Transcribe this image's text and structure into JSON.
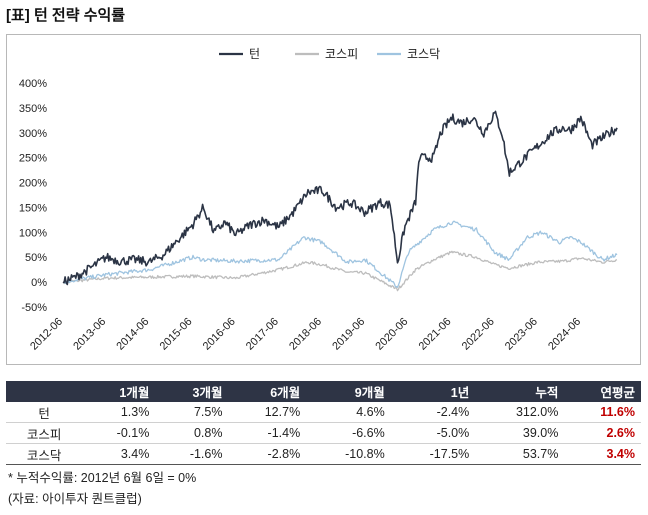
{
  "title": "[표] 턴 전략 수익률",
  "chart_data": {
    "type": "line",
    "title": "",
    "xlabel": "",
    "ylabel": "",
    "ylim": [
      -50,
      400
    ],
    "y_ticks": [
      "400%",
      "350%",
      "300%",
      "250%",
      "200%",
      "150%",
      "100%",
      "50%",
      "0%",
      "-50%"
    ],
    "x_ticks": [
      "2012-06",
      "2013-06",
      "2014-06",
      "2015-06",
      "2016-06",
      "2017-06",
      "2018-06",
      "2019-06",
      "2020-06",
      "2021-06",
      "2022-06",
      "2023-06",
      "2024-06"
    ],
    "legend_position": "top-center",
    "series": [
      {
        "name": "턴",
        "color": "#2b3445",
        "points": [
          [
            "2012-06",
            0
          ],
          [
            "2012-10",
            12
          ],
          [
            "2013-02",
            30
          ],
          [
            "2013-06",
            50
          ],
          [
            "2013-10",
            42
          ],
          [
            "2014-02",
            45
          ],
          [
            "2014-06",
            40
          ],
          [
            "2014-10",
            55
          ],
          [
            "2015-02",
            85
          ],
          [
            "2015-06",
            115
          ],
          [
            "2015-09",
            150
          ],
          [
            "2015-12",
            100
          ],
          [
            "2016-03",
            120
          ],
          [
            "2016-06",
            95
          ],
          [
            "2016-10",
            115
          ],
          [
            "2017-02",
            125
          ],
          [
            "2017-06",
            110
          ],
          [
            "2017-10",
            140
          ],
          [
            "2018-02",
            180
          ],
          [
            "2018-06",
            185
          ],
          [
            "2018-10",
            150
          ],
          [
            "2019-02",
            160
          ],
          [
            "2019-06",
            140
          ],
          [
            "2019-10",
            160
          ],
          [
            "2020-01",
            155
          ],
          [
            "2020-03",
            40
          ],
          [
            "2020-05",
            110
          ],
          [
            "2020-08",
            160
          ],
          [
            "2020-09",
            250
          ],
          [
            "2021-01",
            250
          ],
          [
            "2021-03",
            300
          ],
          [
            "2021-06",
            330
          ],
          [
            "2021-09",
            320
          ],
          [
            "2021-12",
            330
          ],
          [
            "2022-03",
            300
          ],
          [
            "2022-06",
            340
          ],
          [
            "2022-08",
            300
          ],
          [
            "2022-10",
            220
          ],
          [
            "2023-01",
            240
          ],
          [
            "2023-04",
            260
          ],
          [
            "2023-07",
            280
          ],
          [
            "2023-10",
            300
          ],
          [
            "2024-01",
            310
          ],
          [
            "2024-03",
            305
          ],
          [
            "2024-06",
            330
          ],
          [
            "2024-09",
            275
          ],
          [
            "2024-12",
            290
          ],
          [
            "2025-02",
            300
          ],
          [
            "2025-04",
            310
          ]
        ]
      },
      {
        "name": "코스피",
        "color": "#bdbdbd",
        "points": [
          [
            "2012-06",
            0
          ],
          [
            "2013-06",
            8
          ],
          [
            "2014-06",
            10
          ],
          [
            "2015-06",
            12
          ],
          [
            "2016-06",
            8
          ],
          [
            "2017-06",
            25
          ],
          [
            "2018-02",
            40
          ],
          [
            "2018-06",
            35
          ],
          [
            "2019-01",
            20
          ],
          [
            "2019-06",
            18
          ],
          [
            "2020-03",
            -15
          ],
          [
            "2020-08",
            25
          ],
          [
            "2021-01",
            45
          ],
          [
            "2021-06",
            60
          ],
          [
            "2022-01",
            50
          ],
          [
            "2022-06",
            35
          ],
          [
            "2022-10",
            28
          ],
          [
            "2023-06",
            40
          ],
          [
            "2024-01",
            42
          ],
          [
            "2024-06",
            48
          ],
          [
            "2024-12",
            40
          ],
          [
            "2025-04",
            45
          ]
        ]
      },
      {
        "name": "코스닥",
        "color": "#9fc4e0",
        "points": [
          [
            "2012-06",
            0
          ],
          [
            "2013-06",
            15
          ],
          [
            "2014-06",
            25
          ],
          [
            "2015-06",
            50
          ],
          [
            "2015-09",
            45
          ],
          [
            "2016-06",
            42
          ],
          [
            "2017-06",
            45
          ],
          [
            "2018-01",
            90
          ],
          [
            "2018-06",
            80
          ],
          [
            "2019-01",
            40
          ],
          [
            "2019-06",
            45
          ],
          [
            "2020-03",
            -10
          ],
          [
            "2020-06",
            60
          ],
          [
            "2020-09",
            80
          ],
          [
            "2021-01",
            105
          ],
          [
            "2021-06",
            120
          ],
          [
            "2022-01",
            105
          ],
          [
            "2022-06",
            60
          ],
          [
            "2022-10",
            45
          ],
          [
            "2023-03",
            90
          ],
          [
            "2023-07",
            100
          ],
          [
            "2023-12",
            80
          ],
          [
            "2024-03",
            90
          ],
          [
            "2024-06",
            80
          ],
          [
            "2024-12",
            45
          ],
          [
            "2025-04",
            55
          ]
        ]
      }
    ]
  },
  "table": {
    "headers": [
      "",
      "1개월",
      "3개월",
      "6개월",
      "9개월",
      "1년",
      "누적",
      "연평균"
    ],
    "rows": [
      {
        "name": "턴",
        "values": [
          "1.3%",
          "7.5%",
          "12.7%",
          "4.6%",
          "-2.4%",
          "312.0%",
          "11.6%"
        ]
      },
      {
        "name": "코스피",
        "values": [
          "-0.1%",
          "0.8%",
          "-1.4%",
          "-6.6%",
          "-5.0%",
          "39.0%",
          "2.6%"
        ]
      },
      {
        "name": "코스닥",
        "values": [
          "3.4%",
          "-1.6%",
          "-2.8%",
          "-10.8%",
          "-17.5%",
          "53.7%",
          "3.4%"
        ]
      }
    ],
    "highlight_color": "#c00000"
  },
  "notes": {
    "footnote": "* 누적수익률: 2012년 6월 6일 = 0%",
    "source": "(자료: 아이투자 퀀트클럽)"
  }
}
